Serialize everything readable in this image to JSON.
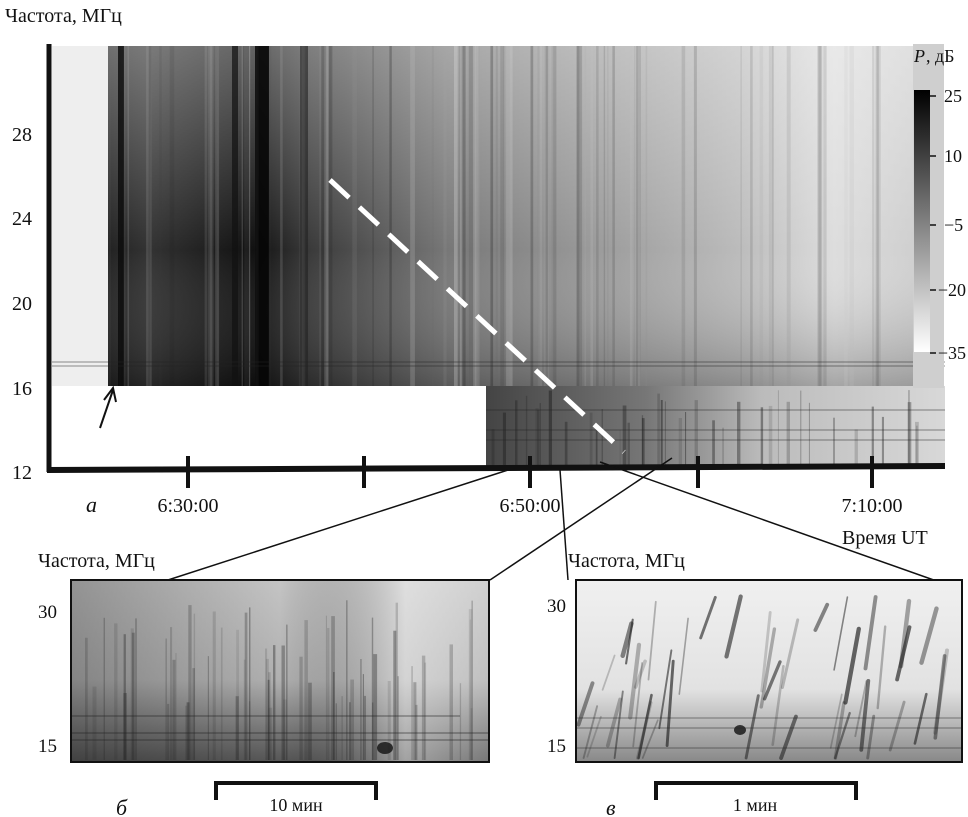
{
  "chart_data": [
    {
      "panel": "а",
      "type": "heatmap",
      "ylabel": "Частота, МГц",
      "xlabel": "Время UT",
      "y_ticks": [
        "12",
        "16",
        "20",
        "24",
        "28"
      ],
      "x_ticks": [
        "6:30:00",
        "6:50:00",
        "7:10:00"
      ],
      "x_range": [
        "6:20:00",
        "7:14:00"
      ],
      "y_range": [
        12,
        32
      ],
      "colorbar": {
        "label_italic": "P",
        "label_rest": ", дБ",
        "ticks": [
          "25",
          "10",
          "−5",
          "−20",
          "−35"
        ],
        "range": [
          -35,
          25
        ]
      },
      "annotations": [
        "arrow at ~6:26:30, 16 МГц",
        "white dashed line from ~6:38:30 / 26 МГц to ~6:56:00 / 12 МГц"
      ]
    },
    {
      "panel": "б",
      "type": "heatmap",
      "ylabel": "Частота, МГц",
      "y_ticks": [
        "15",
        "30"
      ],
      "scale_bar": "10 мин"
    },
    {
      "panel": "в",
      "type": "heatmap",
      "ylabel": "Частота, МГц",
      "y_ticks": [
        "15",
        "30"
      ],
      "scale_bar": "1 мин"
    }
  ]
}
